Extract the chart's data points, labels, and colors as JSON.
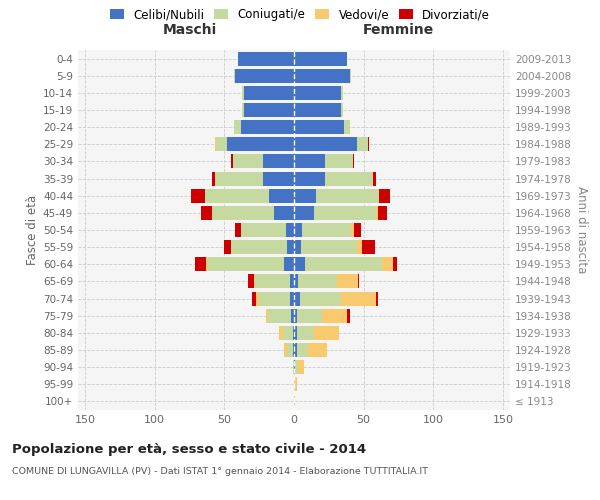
{
  "age_groups": [
    "100+",
    "95-99",
    "90-94",
    "85-89",
    "80-84",
    "75-79",
    "70-74",
    "65-69",
    "60-64",
    "55-59",
    "50-54",
    "45-49",
    "40-44",
    "35-39",
    "30-34",
    "25-29",
    "20-24",
    "15-19",
    "10-14",
    "5-9",
    "0-4"
  ],
  "birth_years": [
    "≤ 1913",
    "1914-1918",
    "1919-1923",
    "1924-1928",
    "1929-1933",
    "1934-1938",
    "1939-1943",
    "1944-1948",
    "1949-1953",
    "1954-1958",
    "1959-1963",
    "1964-1968",
    "1969-1973",
    "1974-1978",
    "1979-1983",
    "1984-1988",
    "1989-1993",
    "1994-1998",
    "1999-2003",
    "2004-2008",
    "2009-2013"
  ],
  "male_celibe": [
    0,
    0,
    0,
    1,
    1,
    2,
    3,
    3,
    7,
    5,
    6,
    14,
    18,
    22,
    22,
    48,
    38,
    36,
    36,
    42,
    40
  ],
  "male_coniugato": [
    0,
    0,
    1,
    4,
    7,
    17,
    22,
    25,
    55,
    40,
    32,
    45,
    46,
    35,
    22,
    8,
    5,
    1,
    1,
    1,
    0
  ],
  "male_vedovo": [
    0,
    0,
    0,
    2,
    3,
    1,
    2,
    1,
    1,
    0,
    0,
    0,
    0,
    0,
    0,
    1,
    0,
    0,
    0,
    0,
    0
  ],
  "male_divorziato": [
    0,
    0,
    0,
    0,
    0,
    0,
    3,
    4,
    8,
    5,
    4,
    8,
    10,
    2,
    1,
    0,
    0,
    0,
    0,
    0,
    0
  ],
  "female_celibe": [
    0,
    0,
    1,
    2,
    2,
    2,
    4,
    3,
    8,
    5,
    6,
    14,
    16,
    22,
    22,
    45,
    36,
    34,
    34,
    40,
    38
  ],
  "female_coniugato": [
    0,
    0,
    2,
    8,
    12,
    18,
    30,
    28,
    55,
    40,
    35,
    45,
    45,
    35,
    20,
    8,
    4,
    1,
    1,
    1,
    0
  ],
  "female_vedovo": [
    1,
    2,
    4,
    14,
    18,
    18,
    25,
    15,
    8,
    4,
    2,
    1,
    0,
    0,
    0,
    0,
    0,
    0,
    0,
    0,
    0
  ],
  "female_divorziato": [
    0,
    0,
    0,
    0,
    0,
    2,
    1,
    1,
    3,
    9,
    5,
    7,
    8,
    2,
    1,
    1,
    0,
    0,
    0,
    0,
    0
  ],
  "color_celibe": "#4472c4",
  "color_coniugato": "#c5d9a0",
  "color_vedovo": "#f9c96e",
  "color_divorziato": "#cc0000",
  "title": "Popolazione per età, sesso e stato civile - 2014",
  "subtitle": "COMUNE DI LUNGAVILLA (PV) - Dati ISTAT 1° gennaio 2014 - Elaborazione TUTTITALIA.IT",
  "ylabel_left": "Fasce di età",
  "ylabel_right": "Anni di nascita",
  "xlabel_left": "Maschi",
  "xlabel_right": "Femmine",
  "xlim": 155,
  "bg_color": "#f5f5f5",
  "grid_color": "#cccccc"
}
